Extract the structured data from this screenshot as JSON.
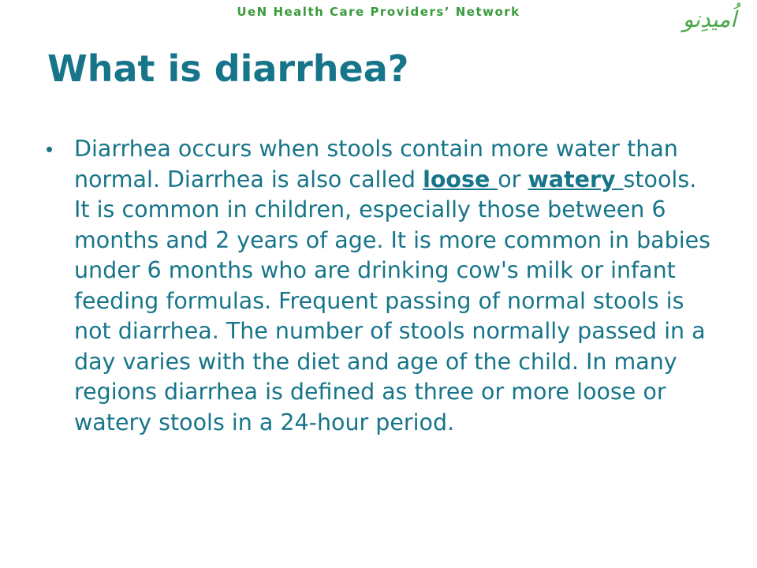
{
  "header": {
    "network_title": "UeN Health Care Providers’ Network",
    "logo_text": "اُمیدِنو"
  },
  "slide": {
    "title": "What is diarrhea?",
    "bullet_symbol": "•",
    "body": {
      "part1": "Diarrhea occurs when stools contain more water than normal. Diarrhea is also called ",
      "term1": "loose ",
      "part2": "or ",
      "term2": "watery ",
      "part3": "stools. It is common in children, especially those between 6 months and 2 years of age. It is more common in babies under 6 months who are drinking cow's milk or infant feeding formulas. Frequent passing of normal stools is not diarrhea. The number of stools normally passed in a day varies with the diet and age of the child. In many regions diarrhea is defined as three or more loose or watery stools in a 24-hour period."
    }
  },
  "colors": {
    "title": "#17758a",
    "body": "#17758a",
    "header": "#3a9a3c",
    "logo": "#4aa74a"
  }
}
